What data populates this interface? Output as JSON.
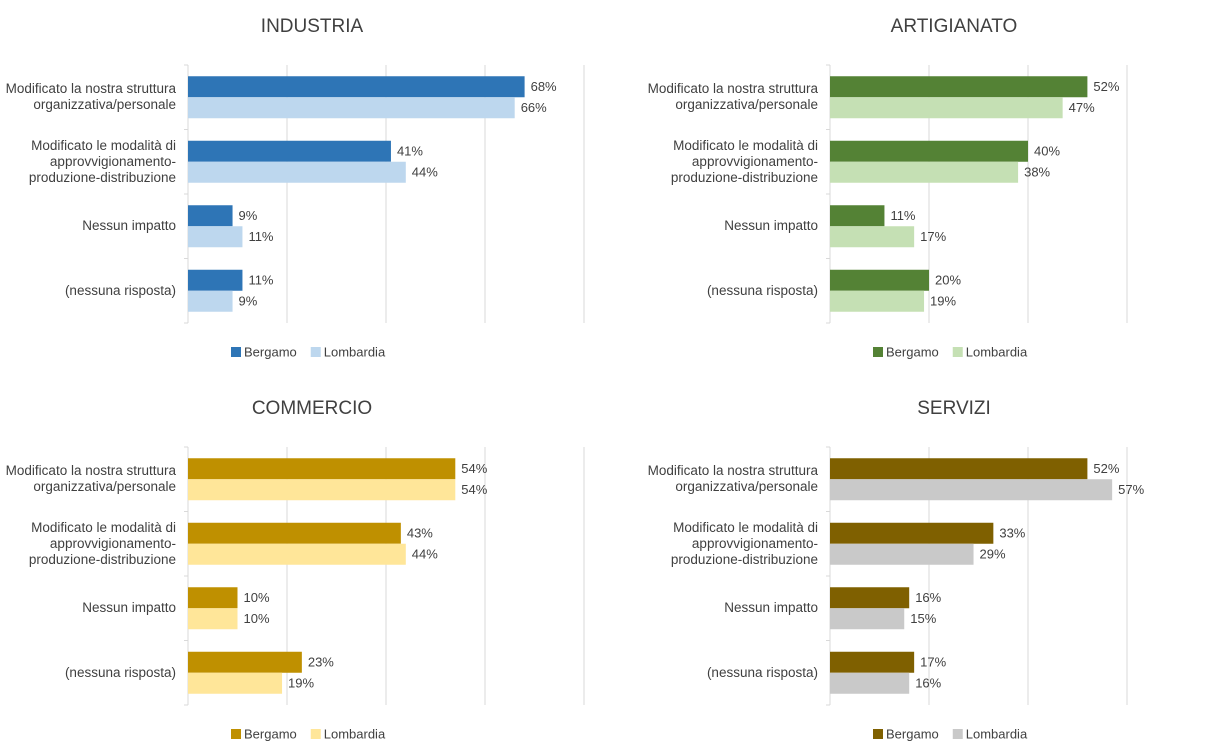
{
  "chart_data": [
    {
      "type": "bar",
      "title": "INDUSTRIA",
      "categories": [
        "Modificato la nostra struttura organizzativa/personale",
        "Modificato le modalità di approvvigionamento-produzione-distribuzione",
        "Nessun impatto",
        "(nessuna risposta)"
      ],
      "series": [
        {
          "name": "Bergamo",
          "color": "#2e75b6",
          "values": [
            68,
            41,
            9,
            11
          ],
          "value_labels": [
            "68%",
            "41%",
            "9%",
            "11%"
          ]
        },
        {
          "name": "Lombardia",
          "color": "#bdd7ee",
          "values": [
            66,
            44,
            11,
            9
          ],
          "value_labels": [
            "66%",
            "44%",
            "11%",
            "9%"
          ]
        }
      ],
      "xlim": [
        0,
        80
      ],
      "xticks": [
        0,
        20,
        40,
        60,
        80
      ],
      "grid": true,
      "legend": "bottom"
    },
    {
      "type": "bar",
      "title": "ARTIGIANATO",
      "categories": [
        "Modificato la nostra struttura organizzativa/personale",
        "Modificato le modalità di approvvigionamento-produzione-distribuzione",
        "Nessun impatto",
        "(nessuna risposta)"
      ],
      "series": [
        {
          "name": "Bergamo",
          "color": "#548235",
          "values": [
            52,
            40,
            11,
            20
          ],
          "value_labels": [
            "52%",
            "40%",
            "11%",
            "20%"
          ]
        },
        {
          "name": "Lombardia",
          "color": "#c5e0b4",
          "values": [
            47,
            38,
            17,
            19
          ],
          "value_labels": [
            "47%",
            "38%",
            "17%",
            "19%"
          ]
        }
      ],
      "xlim": [
        0,
        60
      ],
      "xticks": [
        0,
        20,
        40,
        60
      ],
      "grid": true,
      "legend": "bottom"
    },
    {
      "type": "bar",
      "title": "COMMERCIO",
      "categories": [
        "Modificato la nostra struttura organizzativa/personale",
        "Modificato le modalità di approvvigionamento-produzione-distribuzione",
        "Nessun impatto",
        "(nessuna risposta)"
      ],
      "series": [
        {
          "name": "Bergamo",
          "color": "#bf9000",
          "values": [
            54,
            43,
            10,
            23
          ],
          "value_labels": [
            "54%",
            "43%",
            "10%",
            "23%"
          ]
        },
        {
          "name": "Lombardia",
          "color": "#ffe699",
          "values": [
            54,
            44,
            10,
            19
          ],
          "value_labels": [
            "54%",
            "44%",
            "10%",
            "19%"
          ]
        }
      ],
      "xlim": [
        0,
        80
      ],
      "xticks": [
        0,
        20,
        40,
        60,
        80
      ],
      "grid": true,
      "legend": "bottom"
    },
    {
      "type": "bar",
      "title": "SERVIZI",
      "categories": [
        "Modificato la nostra struttura organizzativa/personale",
        "Modificato le modalità di approvvigionamento-produzione-distribuzione",
        "Nessun impatto",
        "(nessuna risposta)"
      ],
      "series": [
        {
          "name": "Bergamo",
          "color": "#7f6000",
          "values": [
            52,
            33,
            16,
            17
          ],
          "value_labels": [
            "52%",
            "33%",
            "16%",
            "17%"
          ]
        },
        {
          "name": "Lombardia",
          "color": "#c9c9c9",
          "values": [
            57,
            29,
            15,
            16
          ],
          "value_labels": [
            "57%",
            "29%",
            "15%",
            "16%"
          ]
        }
      ],
      "xlim": [
        0,
        60
      ],
      "xticks": [
        0,
        20,
        40,
        60
      ],
      "grid": true,
      "legend": "bottom"
    }
  ]
}
